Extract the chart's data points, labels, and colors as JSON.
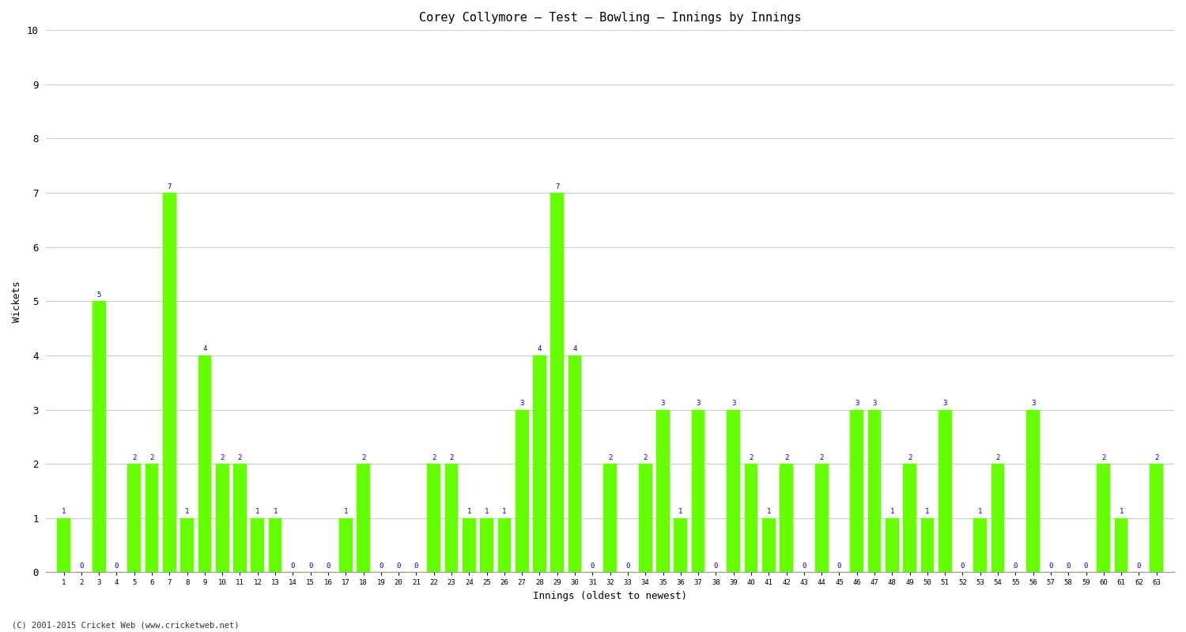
{
  "title": "Corey Collymore – Test – Bowling – Innings by Innings",
  "xlabel": "Innings (oldest to newest)",
  "ylabel": "Wickets",
  "ylim": [
    0,
    10
  ],
  "bar_color": "#66FF00",
  "bar_edge_color": "#66FF00",
  "label_color": "#0000CC",
  "background_color": "#FFFFFF",
  "grid_color": "#CCCCCC",
  "footer": "(C) 2001-2015 Cricket Web (www.cricketweb.net)",
  "innings": [
    1,
    2,
    3,
    4,
    5,
    6,
    7,
    8,
    9,
    10,
    11,
    12,
    13,
    14,
    15,
    16,
    17,
    18,
    19,
    20,
    21,
    22,
    23,
    24,
    25,
    26,
    27,
    28,
    29,
    30,
    31,
    32,
    33,
    34,
    35,
    36,
    37,
    38,
    39,
    40,
    41,
    42,
    43,
    44,
    45,
    46,
    47,
    48,
    49,
    50,
    51,
    52,
    53,
    54,
    55,
    56,
    57,
    58,
    59,
    60,
    61,
    62,
    63
  ],
  "wickets": [
    1,
    0,
    5,
    0,
    2,
    2,
    7,
    1,
    4,
    2,
    2,
    1,
    1,
    0,
    0,
    0,
    1,
    2,
    0,
    0,
    0,
    2,
    2,
    1,
    1,
    1,
    3,
    4,
    7,
    4,
    0,
    2,
    0,
    2,
    3,
    1,
    3,
    0,
    3,
    2,
    1,
    2,
    0,
    2,
    0,
    3,
    3,
    1,
    2,
    1,
    3,
    0,
    1,
    2,
    0,
    3,
    0,
    0,
    0,
    2,
    1,
    0,
    2
  ]
}
